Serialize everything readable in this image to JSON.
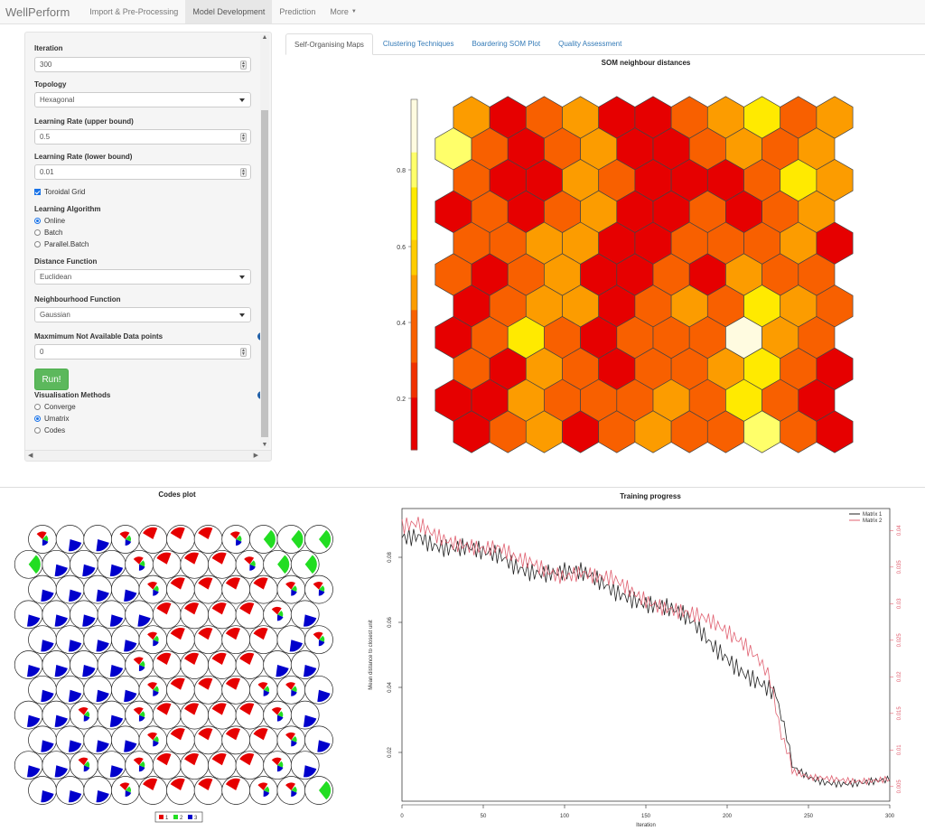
{
  "navbar": {
    "brand": "WellPerform",
    "items": [
      {
        "label": "Import & Pre-Processing",
        "active": false
      },
      {
        "label": "Model Development",
        "active": true
      },
      {
        "label": "Prediction",
        "active": false
      },
      {
        "label": "More",
        "active": false
      }
    ]
  },
  "sidebar": {
    "iteration": {
      "label": "Iteration",
      "value": "300"
    },
    "topology": {
      "label": "Topology",
      "value": "Hexagonal"
    },
    "lr_upper": {
      "label": "Learning Rate (upper bound)",
      "value": "0.5"
    },
    "lr_lower": {
      "label": "Learning Rate (lower bound)",
      "value": "0.01"
    },
    "toroidal": {
      "label": "Toroidal Grid",
      "checked": true
    },
    "algorithm": {
      "label": "Learning Algorithm",
      "options": [
        "Online",
        "Batch",
        "Parallel.Batch"
      ],
      "selected": "Online"
    },
    "distance": {
      "label": "Distance Function",
      "value": "Euclidean"
    },
    "neighbourhood": {
      "label": "Neighbourhood Function",
      "value": "Gaussian"
    },
    "max_na": {
      "label": "Maxmimum Not Available Data points",
      "value": "0"
    },
    "run_label": "Run!",
    "vis": {
      "label": "Visualisation Methods",
      "options": [
        "Converge",
        "Umatrix",
        "Codes"
      ],
      "selected": "Umatrix"
    }
  },
  "tabs": [
    {
      "label": "Self-Organising Maps",
      "active": true
    },
    {
      "label": "Clustering Techniques",
      "active": false
    },
    {
      "label": "Boardering SOM Plot",
      "active": false
    },
    {
      "label": "Quality Assessment",
      "active": false
    }
  ],
  "umatrix": {
    "title": "SOM neighbour distances",
    "colorbar_ticks": [
      "0.8",
      "0.6",
      "0.4",
      "0.2"
    ],
    "colors": {
      "red": "#e60000",
      "redorange": "#f03000",
      "orange": "#f86000",
      "amber": "#fc9c00",
      "yellow": "#ffea00",
      "lightyellow": "#ffff6a",
      "cream": "#fffbe0"
    },
    "grid": [
      [
        "amber",
        "red",
        "orange",
        "amber",
        "red",
        "red",
        "orange",
        "amber",
        "yellow",
        "orange",
        "amber"
      ],
      [
        "lightyellow",
        "orange",
        "red",
        "orange",
        "amber",
        "red",
        "red",
        "orange",
        "amber",
        "orange",
        "amber"
      ],
      [
        "orange",
        "red",
        "red",
        "amber",
        "orange",
        "red",
        "red",
        "red",
        "orange",
        "yellow",
        "amber"
      ],
      [
        "red",
        "orange",
        "red",
        "orange",
        "amber",
        "red",
        "red",
        "orange",
        "red",
        "orange",
        "amber"
      ],
      [
        "orange",
        "orange",
        "amber",
        "amber",
        "red",
        "red",
        "orange",
        "orange",
        "orange",
        "amber",
        "red"
      ],
      [
        "orange",
        "red",
        "orange",
        "amber",
        "red",
        "red",
        "orange",
        "red",
        "amber",
        "orange",
        "orange"
      ],
      [
        "red",
        "orange",
        "amber",
        "amber",
        "red",
        "orange",
        "amber",
        "orange",
        "yellow",
        "amber",
        "orange"
      ],
      [
        "red",
        "orange",
        "yellow",
        "orange",
        "red",
        "orange",
        "orange",
        "orange",
        "cream",
        "amber",
        "orange"
      ],
      [
        "orange",
        "red",
        "amber",
        "orange",
        "red",
        "orange",
        "orange",
        "amber",
        "yellow",
        "orange",
        "red"
      ],
      [
        "red",
        "red",
        "amber",
        "orange",
        "orange",
        "orange",
        "amber",
        "orange",
        "yellow",
        "orange",
        "red"
      ],
      [
        "red",
        "orange",
        "amber",
        "red",
        "orange",
        "amber",
        "orange",
        "orange",
        "lightyellow",
        "orange",
        "red"
      ]
    ]
  },
  "codes_plot": {
    "title": "Codes plot",
    "legend": [
      {
        "label": "1",
        "color": "#e60000"
      },
      {
        "label": "2",
        "color": "#22dd22"
      },
      {
        "label": "3",
        "color": "#0000cc"
      }
    ],
    "grid": [
      [
        "m",
        "b",
        "b",
        "m",
        "r",
        "r",
        "r",
        "m",
        "g",
        "g",
        "g"
      ],
      [
        "g",
        "b",
        "b",
        "b",
        "m",
        "r",
        "r",
        "r",
        "m",
        "g",
        "g"
      ],
      [
        "b",
        "b",
        "b",
        "b",
        "m",
        "r",
        "r",
        "r",
        "r",
        "m",
        "m"
      ],
      [
        "b",
        "b",
        "b",
        "b",
        "b",
        "r",
        "r",
        "r",
        "r",
        "m",
        "b"
      ],
      [
        "b",
        "b",
        "b",
        "b",
        "m",
        "r",
        "r",
        "r",
        "r",
        "b",
        "m"
      ],
      [
        "b",
        "b",
        "b",
        "b",
        "m",
        "r",
        "r",
        "r",
        "r",
        "b",
        "b"
      ],
      [
        "b",
        "b",
        "b",
        "b",
        "m",
        "r",
        "r",
        "r",
        "m",
        "m",
        "b"
      ],
      [
        "b",
        "b",
        "m",
        "b",
        "m",
        "r",
        "r",
        "r",
        "r",
        "m",
        "b"
      ],
      [
        "b",
        "b",
        "b",
        "b",
        "m",
        "r",
        "r",
        "r",
        "r",
        "m",
        "b"
      ],
      [
        "b",
        "b",
        "m",
        "b",
        "m",
        "r",
        "r",
        "r",
        "r",
        "m",
        "b"
      ],
      [
        "b",
        "b",
        "b",
        "m",
        "r",
        "r",
        "r",
        "r",
        "m",
        "m",
        "g"
      ]
    ]
  },
  "chart_data": {
    "type": "line",
    "title": "Training progress",
    "xlabel": "Iteration",
    "ylabel": "Mean distance to closest unit",
    "xlim": [
      0,
      300
    ],
    "ylim": [
      0.005,
      0.095
    ],
    "y2lim": [
      0.003,
      0.043
    ],
    "xticks": [
      "0",
      "50",
      "100",
      "150",
      "200",
      "250",
      "300"
    ],
    "yticks": [
      "0.02",
      "0.04",
      "0.06",
      "0.08"
    ],
    "y2ticks": [
      "0.005",
      "0.01",
      "0.015",
      "0.02",
      "0.025",
      "0.03",
      "0.035",
      "0.04"
    ],
    "series": [
      {
        "name": "Matrix 1",
        "color": "#222222",
        "axis": "left",
        "x": [
          0,
          10,
          20,
          30,
          40,
          50,
          60,
          70,
          80,
          90,
          100,
          110,
          120,
          130,
          140,
          150,
          160,
          170,
          180,
          190,
          200,
          210,
          220,
          230,
          235,
          240,
          250,
          260,
          270,
          280,
          290,
          300
        ],
        "y": [
          0.086,
          0.088,
          0.085,
          0.083,
          0.082,
          0.08,
          0.08,
          0.078,
          0.077,
          0.076,
          0.075,
          0.074,
          0.072,
          0.07,
          0.069,
          0.067,
          0.065,
          0.062,
          0.058,
          0.053,
          0.05,
          0.046,
          0.042,
          0.037,
          0.03,
          0.015,
          0.012,
          0.011,
          0.011,
          0.011,
          0.011,
          0.011
        ]
      },
      {
        "name": "Matrix 2",
        "color": "#e06070",
        "axis": "right",
        "x": [
          0,
          10,
          20,
          30,
          40,
          50,
          60,
          70,
          80,
          90,
          100,
          110,
          120,
          130,
          140,
          150,
          160,
          170,
          180,
          190,
          200,
          210,
          220,
          225,
          230,
          235,
          240,
          250,
          260,
          270,
          280,
          290,
          300
        ],
        "y": [
          0.04,
          0.041,
          0.04,
          0.039,
          0.038,
          0.037,
          0.037,
          0.036,
          0.036,
          0.035,
          0.034,
          0.034,
          0.033,
          0.033,
          0.032,
          0.031,
          0.03,
          0.029,
          0.028,
          0.027,
          0.026,
          0.025,
          0.023,
          0.02,
          0.016,
          0.011,
          0.007,
          0.006,
          0.006,
          0.006,
          0.006,
          0.006,
          0.006
        ]
      }
    ],
    "legend_position": "top-right"
  }
}
